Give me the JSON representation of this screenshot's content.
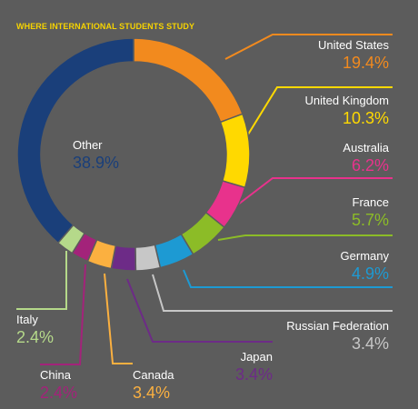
{
  "chart_data": {
    "type": "pie",
    "title": "WHERE INTERNATIONAL STUDENTS STUDY",
    "slices": [
      {
        "label": "United States",
        "value": 19.4,
        "value_label": "19.4%",
        "color": "#f28a1e"
      },
      {
        "label": "United Kingdom",
        "value": 10.3,
        "value_label": "10.3%",
        "color": "#ffd900"
      },
      {
        "label": "Australia",
        "value": 6.2,
        "value_label": "6.2%",
        "color": "#e8328c"
      },
      {
        "label": "France",
        "value": 5.7,
        "value_label": "5.7%",
        "color": "#8cbc27"
      },
      {
        "label": "Germany",
        "value": 4.9,
        "value_label": "4.9%",
        "color": "#1d9ad3"
      },
      {
        "label": "Russian Federation",
        "value": 3.4,
        "value_label": "3.4%",
        "color": "#c7c7c7"
      },
      {
        "label": "Japan",
        "value": 3.4,
        "value_label": "3.4%",
        "color": "#6d2b87"
      },
      {
        "label": "Canada",
        "value": 3.4,
        "value_label": "3.4%",
        "color": "#fbb040"
      },
      {
        "label": "China",
        "value": 2.4,
        "value_label": "2.4%",
        "color": "#a3237a"
      },
      {
        "label": "Italy",
        "value": 2.4,
        "value_label": "2.4%",
        "color": "#b5d98a"
      },
      {
        "label": "Other",
        "value": 38.9,
        "value_label": "38.9%",
        "color": "#1a3f7a"
      }
    ],
    "legend": "callout labels",
    "start_angle": "top, clockwise"
  }
}
